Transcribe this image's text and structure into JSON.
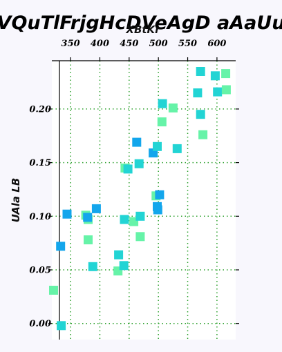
{
  "chart_data": {
    "type": "scatter",
    "title": "VQuTlFrjgHcDVeAgD aAaUu",
    "xlabel": "XBtKr",
    "ylabel": "UAla LB",
    "x_axis_position": "top",
    "xlim": [
      318,
      632
    ],
    "ylim": [
      -0.015,
      0.245
    ],
    "xticks": [
      350,
      400,
      450,
      500,
      550,
      600
    ],
    "yticks": [
      0.0,
      0.05,
      0.1,
      0.15,
      0.2
    ],
    "ytick_labels": [
      "0.00",
      "0.05",
      "0.10",
      "0.15",
      "0.20"
    ],
    "grid": true,
    "marker": "square",
    "colors": {
      "blue": "#13a6ec",
      "teal": "#22d4d4",
      "green": "#66f3a8",
      "grid": "#2ca02c"
    },
    "points": [
      {
        "x": 321,
        "y": 0.031,
        "c": "green"
      },
      {
        "x": 333,
        "y": 0.072,
        "c": "blue"
      },
      {
        "x": 334,
        "y": -0.002,
        "c": "teal"
      },
      {
        "x": 344,
        "y": 0.102,
        "c": "blue"
      },
      {
        "x": 376,
        "y": 0.101,
        "c": "green"
      },
      {
        "x": 380,
        "y": 0.097,
        "c": "green"
      },
      {
        "x": 379,
        "y": 0.099,
        "c": "blue"
      },
      {
        "x": 380,
        "y": 0.078,
        "c": "green"
      },
      {
        "x": 388,
        "y": 0.053,
        "c": "teal"
      },
      {
        "x": 394,
        "y": 0.107,
        "c": "blue"
      },
      {
        "x": 431,
        "y": 0.049,
        "c": "green"
      },
      {
        "x": 432,
        "y": 0.064,
        "c": "teal"
      },
      {
        "x": 441,
        "y": 0.054,
        "c": "teal"
      },
      {
        "x": 442,
        "y": 0.097,
        "c": "teal"
      },
      {
        "x": 443,
        "y": 0.145,
        "c": "green"
      },
      {
        "x": 448,
        "y": 0.144,
        "c": "teal"
      },
      {
        "x": 458,
        "y": 0.095,
        "c": "green"
      },
      {
        "x": 463,
        "y": 0.169,
        "c": "blue"
      },
      {
        "x": 467,
        "y": 0.149,
        "c": "teal"
      },
      {
        "x": 469,
        "y": 0.081,
        "c": "green"
      },
      {
        "x": 469,
        "y": 0.1,
        "c": "teal"
      },
      {
        "x": 491,
        "y": 0.159,
        "c": "blue"
      },
      {
        "x": 496,
        "y": 0.119,
        "c": "green"
      },
      {
        "x": 498,
        "y": 0.165,
        "c": "teal"
      },
      {
        "x": 498,
        "y": 0.109,
        "c": "blue"
      },
      {
        "x": 499,
        "y": 0.106,
        "c": "blue"
      },
      {
        "x": 502,
        "y": 0.12,
        "c": "blue"
      },
      {
        "x": 506,
        "y": 0.188,
        "c": "green"
      },
      {
        "x": 507,
        "y": 0.205,
        "c": "teal"
      },
      {
        "x": 525,
        "y": 0.201,
        "c": "green"
      },
      {
        "x": 532,
        "y": 0.163,
        "c": "teal"
      },
      {
        "x": 567,
        "y": 0.215,
        "c": "teal"
      },
      {
        "x": 572,
        "y": 0.235,
        "c": "teal"
      },
      {
        "x": 572,
        "y": 0.195,
        "c": "teal"
      },
      {
        "x": 576,
        "y": 0.176,
        "c": "green"
      },
      {
        "x": 597,
        "y": 0.231,
        "c": "teal"
      },
      {
        "x": 601,
        "y": 0.216,
        "c": "teal"
      },
      {
        "x": 615,
        "y": 0.233,
        "c": "green"
      },
      {
        "x": 616,
        "y": 0.218,
        "c": "green"
      }
    ]
  }
}
